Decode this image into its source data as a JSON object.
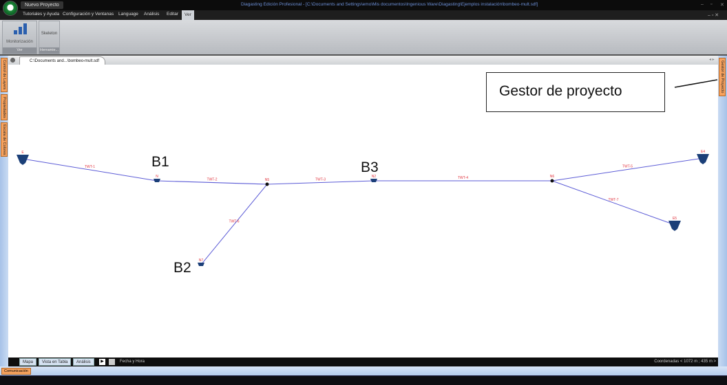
{
  "app": {
    "new_project": "Nuevo Proyecto",
    "title": "Diagasting Edición Profesional - [C:\\Documents and Settings\\emo\\Mis documentos\\Ingenious Ware\\Diagasting\\Ejemplos instalación\\bombeo-mult.sdf]"
  },
  "menu": [
    "Tutoriales y Ayuda",
    "Configuración y Ventanas",
    "Language",
    "Análisis",
    "Editar",
    "Ver"
  ],
  "ribbon": {
    "monitor_label": "Monitorización",
    "group1": "Ver",
    "skeleton_label": "Skeleton",
    "group2": "Herramie..."
  },
  "doc_tab": "C:\\Documents and...\\bombeo-mult.sdf",
  "left_tabs": [
    "Control de Layers",
    "Propiedades",
    "Escala de Colores"
  ],
  "right_tabs": [
    "Gestor de Proyecto"
  ],
  "annotations": {
    "gestor": "Gestor de proyecto",
    "b1": "B1",
    "b2": "B2",
    "b3": "B3"
  },
  "map": {
    "line_color": "#5b5bd6",
    "label_color": "#e0303a",
    "node_color": "#1b3f78",
    "nodes": [
      {
        "id": "E",
        "type": "reservoir"
      },
      {
        "id": "N",
        "type": "pump"
      },
      {
        "id": "N5",
        "type": "junction"
      },
      {
        "id": "N2",
        "type": "pump"
      },
      {
        "id": "N6",
        "type": "junction"
      },
      {
        "id": "E4",
        "type": "reservoir"
      },
      {
        "id": "E5",
        "type": "reservoir"
      },
      {
        "id": "N7",
        "type": "pump"
      }
    ],
    "pipes": [
      {
        "id": "TWT-1",
        "from": "E",
        "to": "N"
      },
      {
        "id": "TWT-2",
        "from": "N",
        "to": "N5"
      },
      {
        "id": "TWT-3",
        "from": "N5",
        "to": "N2"
      },
      {
        "id": "TWT-4",
        "from": "N2",
        "to": "N6"
      },
      {
        "id": "TWT-5",
        "from": "N6",
        "to": "E4"
      },
      {
        "id": "TWT-7",
        "from": "N6",
        "to": "E5"
      },
      {
        "id": "TWT-6",
        "from": "N5",
        "to": "N7"
      }
    ]
  },
  "bottom_tabs": [
    "Mapa",
    "Vista en Tabla",
    "Análisis"
  ],
  "playback": {
    "label": "Fecha y Hora"
  },
  "coords": "Coordenadas < 1072 m ; 435 m >",
  "status": {
    "comms": "Comunicación"
  }
}
